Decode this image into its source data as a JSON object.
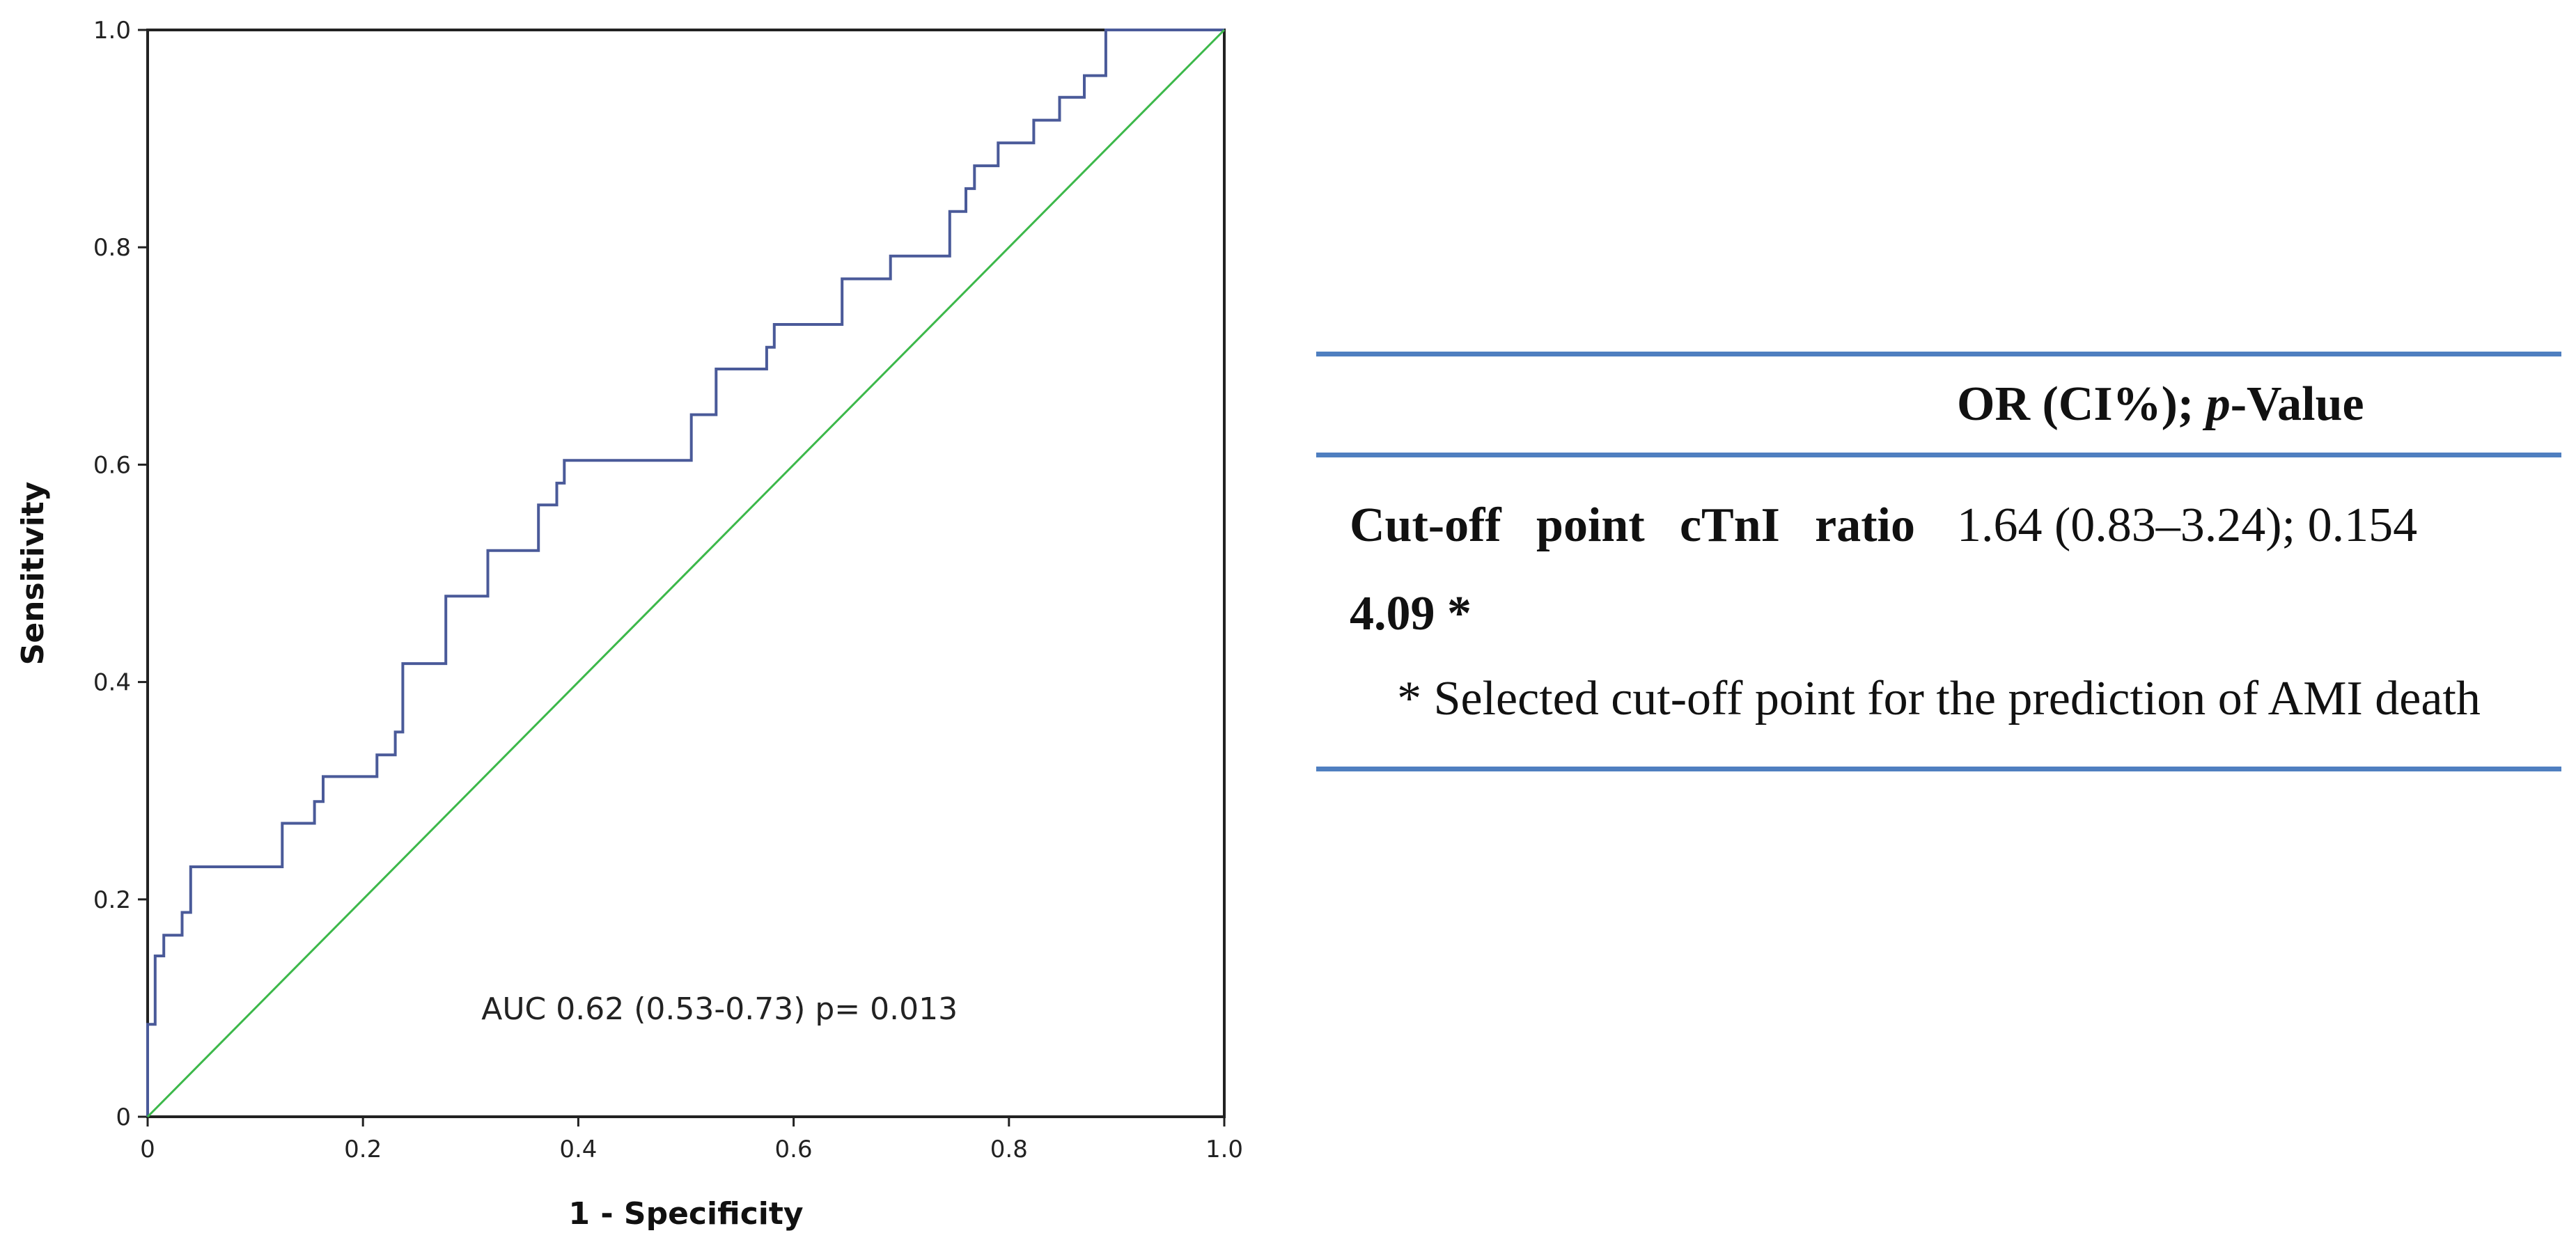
{
  "chart_data": {
    "type": "line",
    "title": "",
    "xlabel": "1 - Specificity",
    "ylabel": "Sensitivity",
    "xlim": [
      0,
      1
    ],
    "ylim": [
      0,
      1
    ],
    "x_ticks": [
      "0",
      "0.2",
      "0.4",
      "0.6",
      "0.8",
      "1.0"
    ],
    "y_ticks": [
      "0",
      "0.2",
      "0.4",
      "0.6",
      "0.8",
      "1.0"
    ],
    "grid": false,
    "annotation": "AUC 0.62 (0.53-0.73) p= 0.013",
    "series": [
      {
        "name": "ROC curve",
        "color": "#4a5a99",
        "step": true,
        "points": [
          [
            0,
            0
          ],
          [
            0,
            0.085
          ],
          [
            0.007,
            0.085
          ],
          [
            0.007,
            0.148
          ],
          [
            0.015,
            0.148
          ],
          [
            0.015,
            0.167
          ],
          [
            0.032,
            0.167
          ],
          [
            0.032,
            0.188
          ],
          [
            0.04,
            0.188
          ],
          [
            0.04,
            0.23
          ],
          [
            0.125,
            0.23
          ],
          [
            0.125,
            0.27
          ],
          [
            0.155,
            0.27
          ],
          [
            0.155,
            0.29
          ],
          [
            0.163,
            0.29
          ],
          [
            0.163,
            0.313
          ],
          [
            0.213,
            0.313
          ],
          [
            0.213,
            0.333
          ],
          [
            0.23,
            0.333
          ],
          [
            0.23,
            0.354
          ],
          [
            0.237,
            0.354
          ],
          [
            0.237,
            0.417
          ],
          [
            0.277,
            0.417
          ],
          [
            0.277,
            0.479
          ],
          [
            0.316,
            0.479
          ],
          [
            0.316,
            0.521
          ],
          [
            0.363,
            0.521
          ],
          [
            0.363,
            0.563
          ],
          [
            0.38,
            0.563
          ],
          [
            0.38,
            0.583
          ],
          [
            0.387,
            0.583
          ],
          [
            0.387,
            0.604
          ],
          [
            0.505,
            0.604
          ],
          [
            0.505,
            0.646
          ],
          [
            0.528,
            0.646
          ],
          [
            0.528,
            0.688
          ],
          [
            0.575,
            0.688
          ],
          [
            0.575,
            0.708
          ],
          [
            0.582,
            0.708
          ],
          [
            0.582,
            0.729
          ],
          [
            0.645,
            0.729
          ],
          [
            0.645,
            0.771
          ],
          [
            0.69,
            0.771
          ],
          [
            0.69,
            0.792
          ],
          [
            0.745,
            0.792
          ],
          [
            0.745,
            0.833
          ],
          [
            0.76,
            0.833
          ],
          [
            0.76,
            0.854
          ],
          [
            0.768,
            0.854
          ],
          [
            0.768,
            0.875
          ],
          [
            0.79,
            0.875
          ],
          [
            0.79,
            0.896
          ],
          [
            0.823,
            0.896
          ],
          [
            0.823,
            0.917
          ],
          [
            0.847,
            0.917
          ],
          [
            0.847,
            0.938
          ],
          [
            0.87,
            0.938
          ],
          [
            0.87,
            0.958
          ],
          [
            0.89,
            0.958
          ],
          [
            0.89,
            1.0
          ],
          [
            1.0,
            1.0
          ]
        ]
      },
      {
        "name": "Reference line",
        "color": "#3cb84a",
        "step": false,
        "points": [
          [
            0,
            0
          ],
          [
            1,
            1
          ]
        ]
      }
    ]
  },
  "table": {
    "header_right": "OR (CI%); p-Value",
    "header_right_prefix": "OR (CI%); ",
    "header_right_italic": "p",
    "header_right_suffix": "-Value",
    "row_label": "Cut-off point cTnI ratio 4.09 *",
    "row_value": "1.64 (0.83–3.24); 0.154",
    "footnote": "* Selected cut-off point for the prediction of AMI death"
  },
  "colors": {
    "rule": "#4f7fc0",
    "frame": "#222222"
  }
}
